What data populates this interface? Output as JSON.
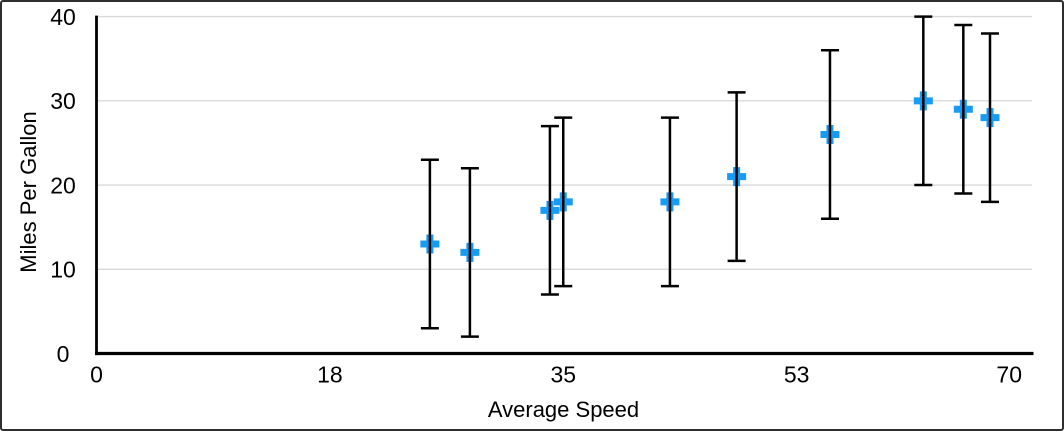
{
  "figure": {
    "background": "#ffffff",
    "border_color": "#2e2e2e"
  },
  "chart_data": {
    "type": "scatter",
    "title": "",
    "xlabel": "Average Speed",
    "ylabel": "Miles Per Gallon",
    "x": [
      25,
      28,
      34,
      35,
      43,
      48,
      55,
      62,
      65,
      67
    ],
    "y": [
      13,
      12,
      17,
      18,
      18,
      21,
      26,
      30,
      29,
      28
    ],
    "y_error": 10,
    "xlim": [
      0,
      70
    ],
    "ylim": [
      0,
      40
    ],
    "x_ticks": [
      0,
      17.5,
      35,
      52.5,
      70
    ],
    "x_tick_labels": [
      "0",
      "18",
      "35",
      "53",
      "70"
    ],
    "y_ticks": [
      0,
      10,
      20,
      30,
      40
    ],
    "y_tick_labels": [
      "0",
      "10",
      "20",
      "30",
      "40"
    ],
    "grid": "horizontal-only",
    "legend": "none",
    "marker": {
      "shape": "plus",
      "color": "#189bf2",
      "size": 19,
      "arm_thickness": 7
    },
    "error_bar": {
      "color": "#000000",
      "cap_width": 18,
      "line_width": 2.5
    },
    "grid_color": "#d9d9d9",
    "axis_color": "#000000",
    "text_color": "#000000",
    "tick_font_size": 23
  }
}
